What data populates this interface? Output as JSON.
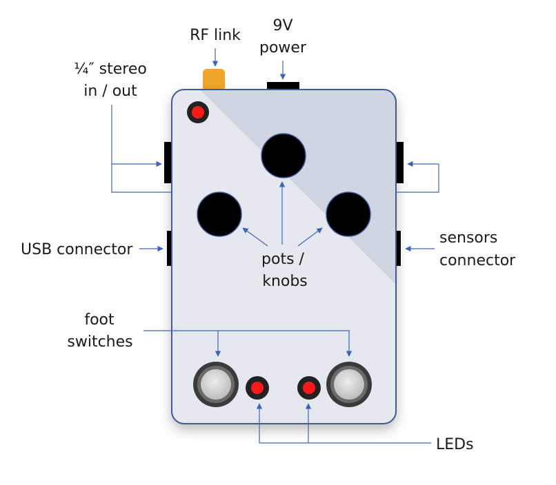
{
  "labels": {
    "rf_link": "RF link",
    "power_line1": "9V",
    "power_line2": "power",
    "stereo_line1": "¼″ stereo",
    "stereo_line2": "in / out",
    "usb": "USB connector",
    "sensors_line1": "sensors",
    "sensors_line2": "connector",
    "pots_line1": "pots /",
    "pots_line2": "knobs",
    "foot_line1": "foot",
    "foot_line2": "switches",
    "leds": "LEDs"
  },
  "colors": {
    "enclosure_light": "#e5e8ee",
    "enclosure_shade": "#cfd6e1",
    "enclosure_border": "#3d5a9c",
    "arrow": "#3d63b8",
    "knob": "#000000",
    "led_red": "#ff1a1a",
    "rf_antenna": "#f0a62a",
    "footswitch_cap": "#d6d6d6",
    "footswitch_ring": "#555555"
  }
}
